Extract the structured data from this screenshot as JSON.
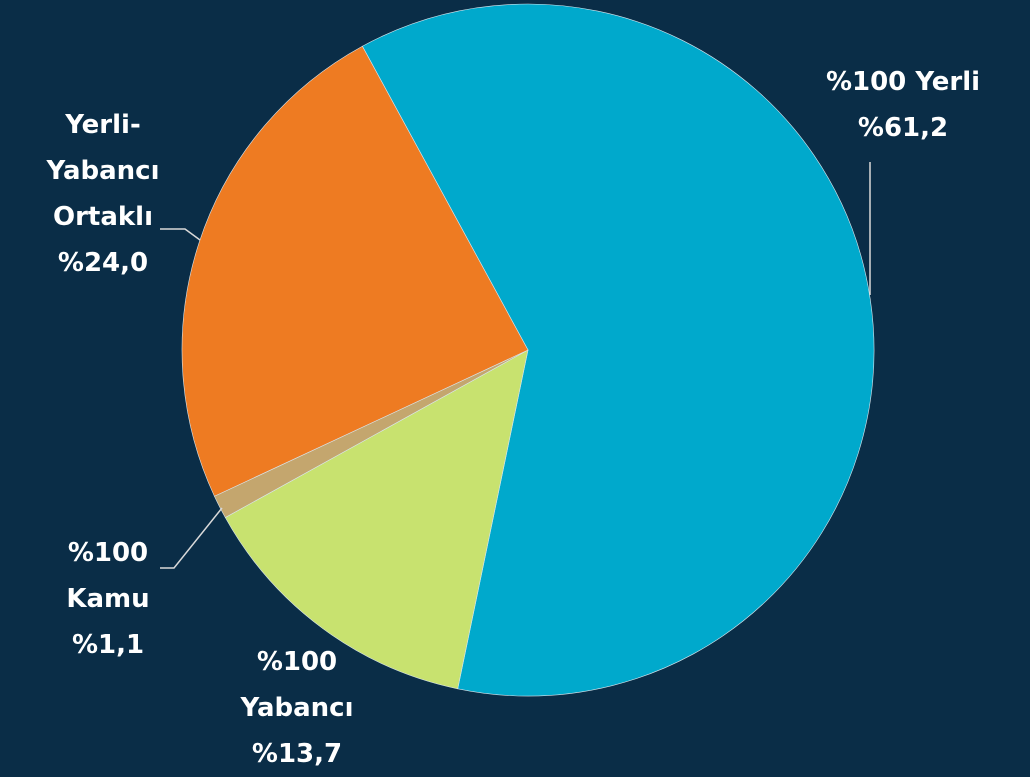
{
  "chart_data": {
    "type": "pie",
    "categories": [
      "%100 Yerli",
      "%100 Yabancı",
      "%100 Kamu",
      "Yerli-Yabancı Ortaklı"
    ],
    "values": [
      61.2,
      13.7,
      1.1,
      24.0
    ],
    "value_labels": [
      "%61,2",
      "%13,7",
      "%1,1",
      "%24,0"
    ],
    "colors": [
      "#00a9cc",
      "#c8e26f",
      "#c4a66e",
      "#ee7b22"
    ]
  }
}
